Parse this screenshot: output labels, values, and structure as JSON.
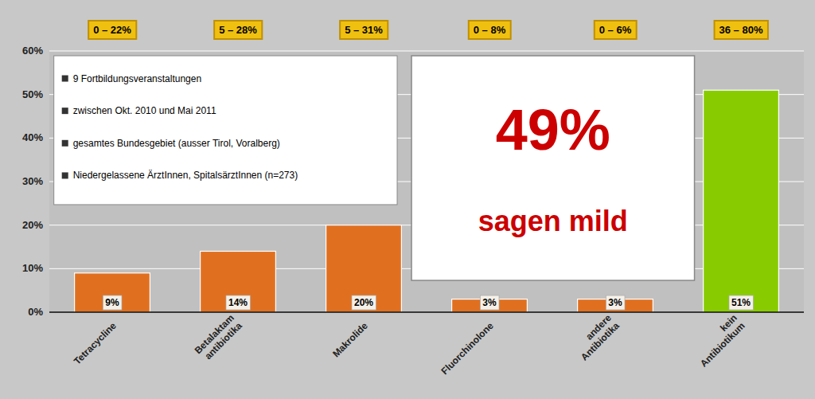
{
  "chart_data": {
    "type": "bar",
    "categories": [
      "Tetracycline",
      "Betalaktam\nantibiotika",
      "Makrolide",
      "Fluorchinolone",
      "andere\nAntibiotika",
      "kein\nAntibiotikum"
    ],
    "values": [
      9,
      14,
      20,
      3,
      3,
      51
    ],
    "value_labels": [
      "9%",
      "14%",
      "20%",
      "3%",
      "3%",
      "51%"
    ],
    "data_labels": true,
    "colors": [
      "#e07020",
      "#e07020",
      "#e07020",
      "#e07020",
      "#e07020",
      "#88cc00"
    ],
    "range_labels": [
      "0 – 22%",
      "5 – 28%",
      "5 – 31%",
      "0 – 8%",
      "0 – 6%",
      "36 – 80%"
    ],
    "ylim": [
      0,
      60
    ],
    "yticks": [
      {
        "value": 0,
        "label": "0%"
      },
      {
        "value": 10,
        "label": "10%"
      },
      {
        "value": 20,
        "label": "20%"
      },
      {
        "value": 30,
        "label": "30%"
      },
      {
        "value": 40,
        "label": "40%"
      },
      {
        "value": 50,
        "label": "50%"
      },
      {
        "value": 60,
        "label": "60%"
      }
    ],
    "grid": true,
    "annotations": [
      "9 Fortbildungsveranstaltungen",
      "zwischen  Okt. 2010 und Mai 2011",
      "gesamtes Bundesgebiet (ausser Tirol, Voralberg)",
      "Niedergelassene ÄrztInnen, SpitalsärztInnen (n=273)"
    ],
    "callout": "49%",
    "callout_text": "sagen mild"
  }
}
